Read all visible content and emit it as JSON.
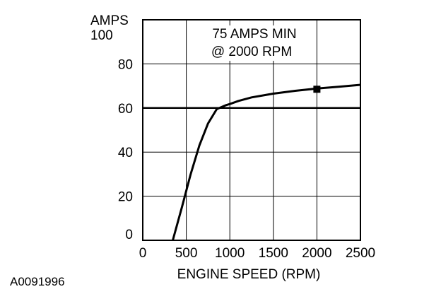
{
  "chart_data": {
    "type": "line",
    "title_lines": [
      "75 AMPS MIN",
      "@ 2000 RPM"
    ],
    "ylabel_lines": [
      "AMPS",
      "100"
    ],
    "xlabel": "ENGINE SPEED (RPM)",
    "figure_id": "A0091996",
    "xlim": [
      0,
      2500
    ],
    "ylim": [
      0,
      100
    ],
    "x_ticks": [
      "0",
      "500",
      "1000",
      "1500",
      "2000",
      "2500"
    ],
    "y_ticks": [
      "0",
      "20",
      "40",
      "60",
      "80"
    ],
    "grid": true,
    "series": [
      {
        "x": [
          345,
          450,
          550,
          650,
          750,
          850,
          950,
          1000,
          1100,
          1250,
          1500,
          1750,
          2000,
          2250,
          2500
        ],
        "y": [
          0,
          15,
          30,
          43,
          53,
          59.5,
          61.2,
          61.8,
          63.2,
          64.8,
          66.5,
          67.8,
          68.8,
          69.6,
          70.5
        ]
      }
    ],
    "marker": {
      "x": 2000,
      "y": 68.5,
      "shape": "square"
    }
  }
}
